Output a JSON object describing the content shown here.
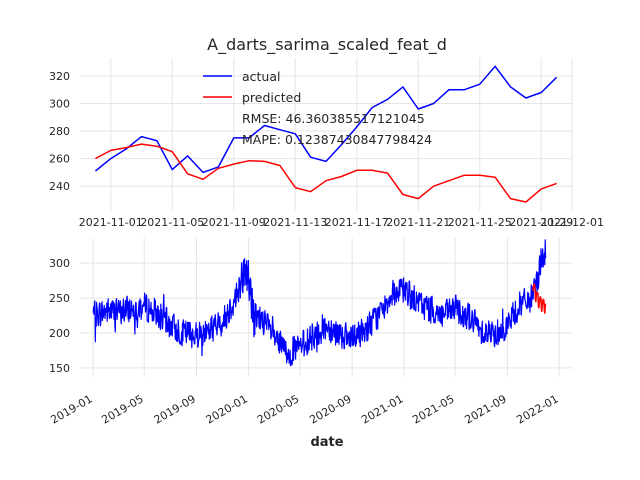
{
  "chart_data": [
    {
      "type": "line",
      "title": "A_darts_sarima_scaled_feat_d",
      "grid": true,
      "legend_position": "top-center",
      "ylim": [
        222,
        333
      ],
      "xlim": [
        "2021-10-30",
        "2021-12-01"
      ],
      "yticks": [
        240,
        260,
        280,
        300,
        320
      ],
      "xtick_labels": [
        "2021-11-01",
        "2021-11-05",
        "2021-11-09",
        "2021-11-13",
        "2021-11-17",
        "2021-11-21",
        "2021-11-25",
        "2021-11-29",
        "2021-12-01"
      ],
      "xticks": [
        "2021-11-01",
        "2021-11-05",
        "2021-11-09",
        "2021-11-13",
        "2021-11-17",
        "2021-11-21",
        "2021-11-25",
        "2021-11-29",
        "2021-12-01"
      ],
      "annotations": [
        "RMSE: 46.360385517121045",
        "MAPE: 0.12387430847798424"
      ],
      "series": [
        {
          "name": "actual",
          "color": "#0000ff",
          "x": [
            "2021-10-31",
            "2021-11-01",
            "2021-11-02",
            "2021-11-03",
            "2021-11-04",
            "2021-11-05",
            "2021-11-06",
            "2021-11-07",
            "2021-11-08",
            "2021-11-09",
            "2021-11-10",
            "2021-11-11",
            "2021-11-12",
            "2021-11-13",
            "2021-11-14",
            "2021-11-15",
            "2021-11-16",
            "2021-11-17",
            "2021-11-18",
            "2021-11-19",
            "2021-11-20",
            "2021-11-21",
            "2021-11-22",
            "2021-11-23",
            "2021-11-24",
            "2021-11-25",
            "2021-11-26",
            "2021-11-27",
            "2021-11-28",
            "2021-11-29",
            "2021-11-30"
          ],
          "values": [
            251,
            260,
            267,
            276,
            273,
            252,
            262,
            250,
            254,
            275,
            275,
            284,
            281,
            278,
            261,
            258,
            270,
            283,
            297,
            303,
            312,
            296,
            300,
            310,
            310,
            314,
            327,
            312,
            304,
            308,
            319
          ]
        },
        {
          "name": "predicted",
          "color": "#ff0000",
          "x": [
            "2021-10-31",
            "2021-11-01",
            "2021-11-02",
            "2021-11-03",
            "2021-11-04",
            "2021-11-05",
            "2021-11-06",
            "2021-11-07",
            "2021-11-08",
            "2021-11-09",
            "2021-11-10",
            "2021-11-11",
            "2021-11-12",
            "2021-11-13",
            "2021-11-14",
            "2021-11-15",
            "2021-11-16",
            "2021-11-17",
            "2021-11-18",
            "2021-11-19",
            "2021-11-20",
            "2021-11-21",
            "2021-11-22",
            "2021-11-23",
            "2021-11-24",
            "2021-11-25",
            "2021-11-26",
            "2021-11-27",
            "2021-11-28",
            "2021-11-29",
            "2021-11-30"
          ],
          "values": [
            260,
            266,
            268,
            270.5,
            269,
            265,
            249,
            245,
            253,
            256,
            258.5,
            258,
            255,
            239,
            236,
            244,
            247,
            251.5,
            251.5,
            249.5,
            234,
            231,
            240,
            244,
            248,
            248,
            246.5,
            231,
            228.5,
            238,
            242
          ]
        }
      ]
    },
    {
      "type": "line",
      "xlabel": "date",
      "grid": true,
      "ylim": [
        137,
        336
      ],
      "xlim": [
        "2018-12-01",
        "2022-01-31"
      ],
      "yticks": [
        150,
        200,
        250,
        300
      ],
      "xtick_labels": [
        "2019-01",
        "2019-05",
        "2019-09",
        "2020-01",
        "2020-05",
        "2020-09",
        "2021-01",
        "2021-05",
        "2021-09",
        "2022-01"
      ],
      "xticks": [
        "2019-01-01",
        "2019-05-01",
        "2019-09-01",
        "2020-01-01",
        "2020-05-01",
        "2020-09-01",
        "2021-01-01",
        "2021-05-01",
        "2021-09-01",
        "2022-01-01"
      ],
      "series": [
        {
          "name": "actual",
          "color": "#0000ff",
          "keypoints": [
            [
              "2019-01-01",
              225
            ],
            [
              "2019-02-01",
              232
            ],
            [
              "2019-03-01",
              230
            ],
            [
              "2019-04-01",
              235
            ],
            [
              "2019-05-01",
              238
            ],
            [
              "2019-06-01",
              228
            ],
            [
              "2019-07-01",
              212
            ],
            [
              "2019-08-01",
              200
            ],
            [
              "2019-09-01",
              198
            ],
            [
              "2019-10-01",
              205
            ],
            [
              "2019-11-01",
              215
            ],
            [
              "2019-12-01",
              250
            ],
            [
              "2019-12-25",
              290
            ],
            [
              "2020-01-01",
              280
            ],
            [
              "2020-01-15",
              215
            ],
            [
              "2020-02-01",
              222
            ],
            [
              "2020-03-01",
              195
            ],
            [
              "2020-04-01",
              170
            ],
            [
              "2020-05-01",
              180
            ],
            [
              "2020-06-01",
              195
            ],
            [
              "2020-07-01",
              210
            ],
            [
              "2020-08-01",
              200
            ],
            [
              "2020-09-01",
              190
            ],
            [
              "2020-10-01",
              205
            ],
            [
              "2020-11-01",
              225
            ],
            [
              "2020-12-01",
              255
            ],
            [
              "2021-01-01",
              262
            ],
            [
              "2021-02-01",
              245
            ],
            [
              "2021-03-01",
              235
            ],
            [
              "2021-04-01",
              225
            ],
            [
              "2021-05-01",
              235
            ],
            [
              "2021-06-01",
              225
            ],
            [
              "2021-07-01",
              205
            ],
            [
              "2021-08-01",
              198
            ],
            [
              "2021-09-01",
              212
            ],
            [
              "2021-10-01",
              240
            ],
            [
              "2021-10-31",
              251
            ],
            [
              "2021-11-10",
              275
            ],
            [
              "2021-11-20",
              305
            ],
            [
              "2021-11-30",
              319
            ]
          ]
        },
        {
          "name": "predicted",
          "color": "#ff0000",
          "x": [
            "2021-10-31",
            "2021-11-01",
            "2021-11-02",
            "2021-11-03",
            "2021-11-04",
            "2021-11-05",
            "2021-11-06",
            "2021-11-07",
            "2021-11-08",
            "2021-11-09",
            "2021-11-10",
            "2021-11-11",
            "2021-11-12",
            "2021-11-13",
            "2021-11-14",
            "2021-11-15",
            "2021-11-16",
            "2021-11-17",
            "2021-11-18",
            "2021-11-19",
            "2021-11-20",
            "2021-11-21",
            "2021-11-22",
            "2021-11-23",
            "2021-11-24",
            "2021-11-25",
            "2021-11-26",
            "2021-11-27",
            "2021-11-28",
            "2021-11-29",
            "2021-11-30"
          ],
          "values": [
            260,
            266,
            268,
            270.5,
            269,
            265,
            249,
            245,
            253,
            256,
            258.5,
            258,
            255,
            239,
            236,
            244,
            247,
            251.5,
            251.5,
            249.5,
            234,
            231,
            240,
            244,
            248,
            248,
            246.5,
            231,
            228.5,
            238,
            242
          ]
        }
      ]
    }
  ]
}
